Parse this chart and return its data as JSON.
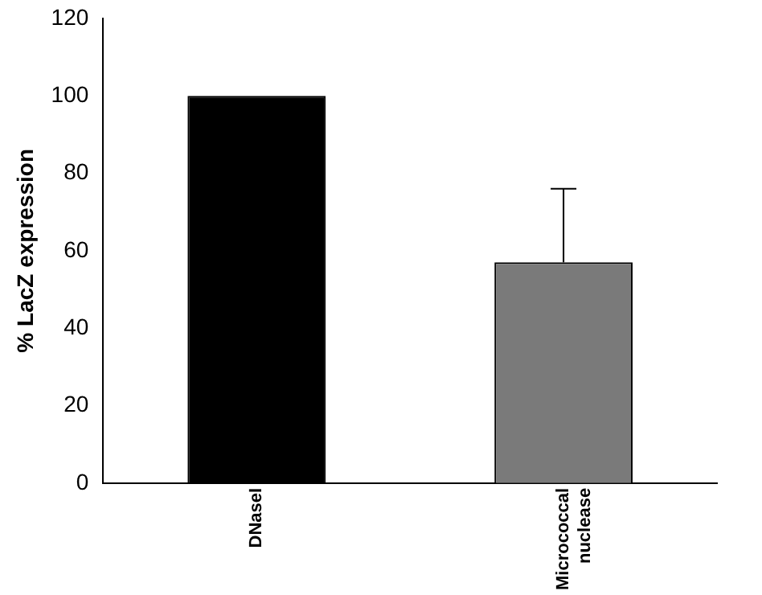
{
  "chart_data": {
    "type": "bar",
    "ylabel": "% LacZ expression",
    "categories": [
      "DNaseI",
      "Micrococcal nuclease"
    ],
    "values": [
      100,
      57
    ],
    "colors": [
      "#000000",
      "#7a7a7a"
    ],
    "errors": [
      null,
      [
        57,
        76
      ]
    ],
    "ylim": [
      0,
      120
    ],
    "yticks": [
      0,
      20,
      40,
      60,
      80,
      100,
      120
    ],
    "grid": false,
    "legend": false
  }
}
